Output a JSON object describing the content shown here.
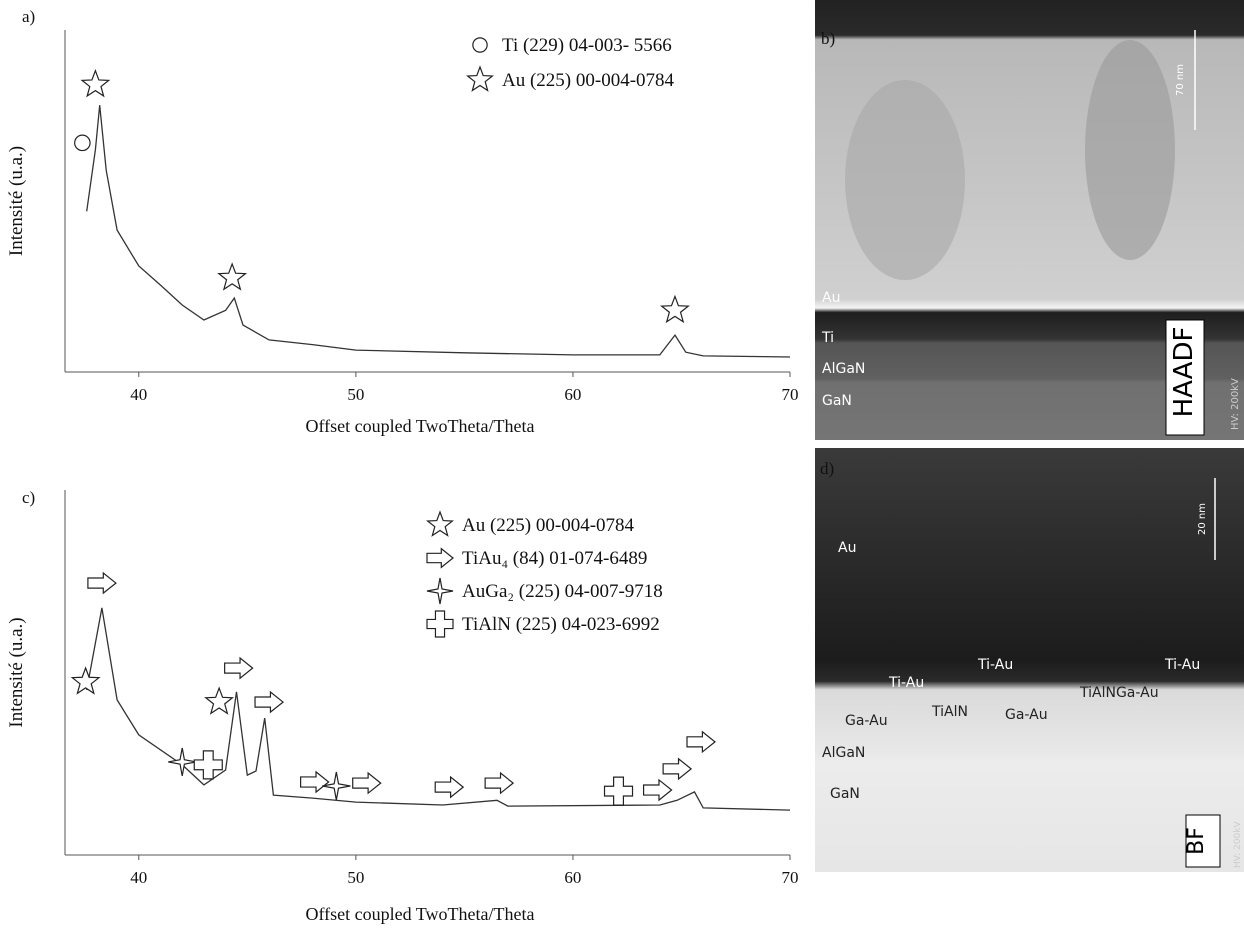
{
  "chart_data": [
    {
      "type": "line",
      "title": "a)",
      "xlabel": "Offset coupled TwoTheta/Theta",
      "ylabel": "Intensité (u.a.)",
      "xlim": [
        36.6,
        70
      ],
      "ylim": [
        0,
        100
      ],
      "xticks": [
        40,
        50,
        60,
        70
      ],
      "color": "#333",
      "x": [
        37.6,
        38.0,
        38.2,
        38.5,
        39,
        40,
        41,
        42,
        43,
        44,
        44.4,
        44.8,
        46,
        48,
        50,
        55,
        60,
        64,
        64.7,
        65.2,
        66,
        70
      ],
      "values": [
        47,
        65,
        78,
        59,
        41.5,
        31,
        25.4,
        19.6,
        15.2,
        18,
        21.6,
        13.7,
        9.4,
        8,
        6.4,
        5.6,
        5,
        5,
        10.8,
        5.8,
        4.7,
        4.4
      ],
      "legend": [
        {
          "symbol": "circle",
          "label": "Ti (229) 04-003- 5566"
        },
        {
          "symbol": "star",
          "label": "Au (225) 00-004-0784"
        }
      ],
      "markers": [
        {
          "symbol": "circle",
          "x": 37.4,
          "y": 67
        },
        {
          "symbol": "star",
          "x": 38.0,
          "y": 84
        },
        {
          "symbol": "star",
          "x": 44.3,
          "y": 27.5
        },
        {
          "symbol": "star",
          "x": 64.7,
          "y": 18
        }
      ]
    },
    {
      "type": "line",
      "title": "c)",
      "xlabel": "Offset coupled TwoTheta/Theta",
      "ylabel": "Intensité (u.a.)",
      "xlim": [
        36.6,
        70
      ],
      "ylim": [
        0,
        100
      ],
      "xticks": [
        40,
        50,
        60,
        70
      ],
      "color": "#333",
      "x": [
        37.6,
        38.3,
        39,
        40,
        42,
        43,
        44,
        44.5,
        45,
        45.4,
        45.8,
        46.2,
        48,
        50,
        54,
        56.5,
        57,
        64,
        64.8,
        65.6,
        66,
        70
      ],
      "values": [
        45.2,
        67.7,
        42.5,
        32.9,
        24.7,
        19.2,
        23.3,
        44.7,
        21.9,
        23,
        37.5,
        16.4,
        15.6,
        14.5,
        13.7,
        15,
        13.4,
        13.7,
        15,
        17.3,
        12.9,
        12.3
      ],
      "legend": [
        {
          "symbol": "star",
          "label": "Au (225) 00-004-0784"
        },
        {
          "symbol": "arrow",
          "label": "TiAu₄ (84) 01-074-6489"
        },
        {
          "symbol": "star4",
          "label": "AuGa₂ (225) 04-007-9718"
        },
        {
          "symbol": "plus",
          "label": "TiAlN (225) 04-023-6992"
        }
      ],
      "markers": [
        {
          "symbol": "star",
          "x": 37.55,
          "y": 47.4
        },
        {
          "symbol": "arrow",
          "x": 38.3,
          "y": 74.5
        },
        {
          "symbol": "star4",
          "x": 42.0,
          "y": 25.5
        },
        {
          "symbol": "plus",
          "x": 43.2,
          "y": 24.7
        },
        {
          "symbol": "star",
          "x": 43.7,
          "y": 41.9
        },
        {
          "symbol": "arrow",
          "x": 44.6,
          "y": 51.2
        },
        {
          "symbol": "arrow",
          "x": 46.0,
          "y": 41.9
        },
        {
          "symbol": "arrow",
          "x": 48.1,
          "y": 20
        },
        {
          "symbol": "star4",
          "x": 49.1,
          "y": 18.9
        },
        {
          "symbol": "arrow",
          "x": 50.5,
          "y": 19.7
        },
        {
          "symbol": "arrow",
          "x": 54.3,
          "y": 18.6
        },
        {
          "symbol": "arrow",
          "x": 56.6,
          "y": 19.7
        },
        {
          "symbol": "plus",
          "x": 62.1,
          "y": 17.5
        },
        {
          "symbol": "arrow",
          "x": 63.9,
          "y": 17.8
        },
        {
          "symbol": "arrow",
          "x": 64.8,
          "y": 23.6
        },
        {
          "symbol": "arrow",
          "x": 65.9,
          "y": 31
        }
      ]
    }
  ],
  "images": [
    {
      "label": "b)",
      "scale": "70 nm",
      "texts": [
        "Au",
        "Ti",
        "AlGaN",
        "GaN"
      ],
      "mode": "HAADF",
      "hv": "HV: 200kV"
    },
    {
      "label": "d)",
      "scale": "20 nm",
      "texts": [
        "Au",
        "Ti-Au",
        "Ti-Au",
        "Ti-Au",
        "Ga-Au",
        "TiAlN",
        "Ga-Au",
        "TiAlNGa-Au",
        "AlGaN",
        "GaN"
      ],
      "mode": "BF",
      "hv": "HV: 200kV"
    }
  ]
}
